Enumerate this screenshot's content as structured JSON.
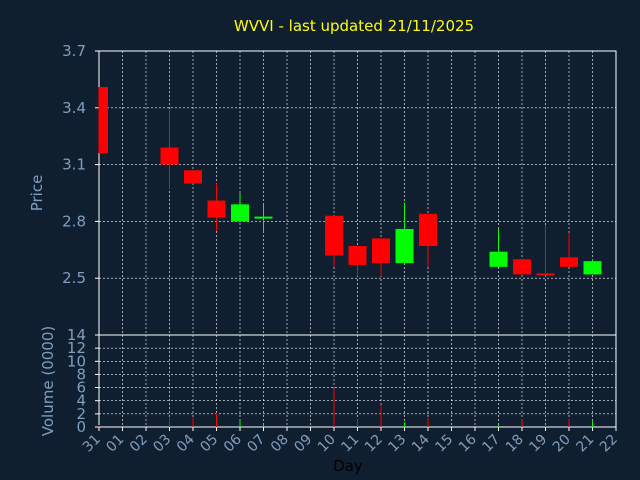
{
  "chart_data": {
    "type": "candlestick",
    "title": "WVVI - last updated 21/11/2025",
    "xlabel": "Day",
    "price_ylabel": "Price",
    "volume_ylabel": "Volume (0000)",
    "x_ticks": [
      "31",
      "01",
      "02",
      "03",
      "04",
      "05",
      "06",
      "07",
      "08",
      "09",
      "10",
      "11",
      "12",
      "13",
      "14",
      "15",
      "16",
      "17",
      "18",
      "19",
      "20",
      "21",
      "22"
    ],
    "price_ticks": [
      "3.7",
      "3.4",
      "3.1",
      "2.8",
      "2.5"
    ],
    "price_ylim": [
      2.2,
      3.7
    ],
    "volume_ticks": [
      "14",
      "12",
      "10",
      "8",
      "6",
      "4",
      "2",
      "0"
    ],
    "volume_ylim": [
      0,
      14
    ],
    "grid": true,
    "colors": {
      "up": "#00ff00",
      "down": "#ff0000",
      "title": "#ffff00",
      "text": "#7f9fbf",
      "grid": "#ffffff"
    },
    "candles": [
      {
        "day": "31",
        "open": 3.51,
        "high": 3.51,
        "low": 3.16,
        "close": 3.16,
        "volume": 0.3
      },
      {
        "day": "03",
        "open": 3.19,
        "high": 3.39,
        "low": 2.97,
        "close": 3.1,
        "volume": 1.4
      },
      {
        "day": "04",
        "open": 3.07,
        "high": 3.07,
        "low": 3.0,
        "close": 3.0,
        "volume": 1.4
      },
      {
        "day": "05",
        "open": 2.91,
        "high": 3.0,
        "low": 2.75,
        "close": 2.82,
        "volume": 2.1
      },
      {
        "day": "06",
        "open": 2.8,
        "high": 2.95,
        "low": 2.8,
        "close": 2.89,
        "volume": 1.0
      },
      {
        "day": "07",
        "open": 2.81,
        "high": 2.89,
        "low": 2.75,
        "close": 2.82,
        "volume": 0.5
      },
      {
        "day": "10",
        "open": 2.83,
        "high": 2.83,
        "low": 2.56,
        "close": 2.62,
        "volume": 5.9
      },
      {
        "day": "11",
        "open": 2.67,
        "high": 2.67,
        "low": 2.51,
        "close": 2.57,
        "volume": 1.2
      },
      {
        "day": "12",
        "open": 2.71,
        "high": 2.71,
        "low": 2.51,
        "close": 2.58,
        "volume": 3.3
      },
      {
        "day": "13",
        "open": 2.58,
        "high": 2.9,
        "low": 2.58,
        "close": 2.76,
        "volume": 0.7
      },
      {
        "day": "14",
        "open": 2.84,
        "high": 2.84,
        "low": 2.56,
        "close": 2.67,
        "volume": 1.4
      },
      {
        "day": "17",
        "open": 2.56,
        "high": 2.76,
        "low": 2.56,
        "close": 2.64,
        "volume": 0.3
      },
      {
        "day": "18",
        "open": 2.6,
        "high": 2.6,
        "low": 2.52,
        "close": 2.52,
        "volume": 1.2
      },
      {
        "day": "19",
        "open": 2.52,
        "high": 2.78,
        "low": 2.51,
        "close": 2.51,
        "volume": 0.3
      },
      {
        "day": "20",
        "open": 2.61,
        "high": 2.74,
        "low": 2.56,
        "close": 2.56,
        "volume": 1.2
      },
      {
        "day": "21",
        "open": 2.52,
        "high": 2.6,
        "low": 2.52,
        "close": 2.59,
        "volume": 0.9
      }
    ]
  }
}
